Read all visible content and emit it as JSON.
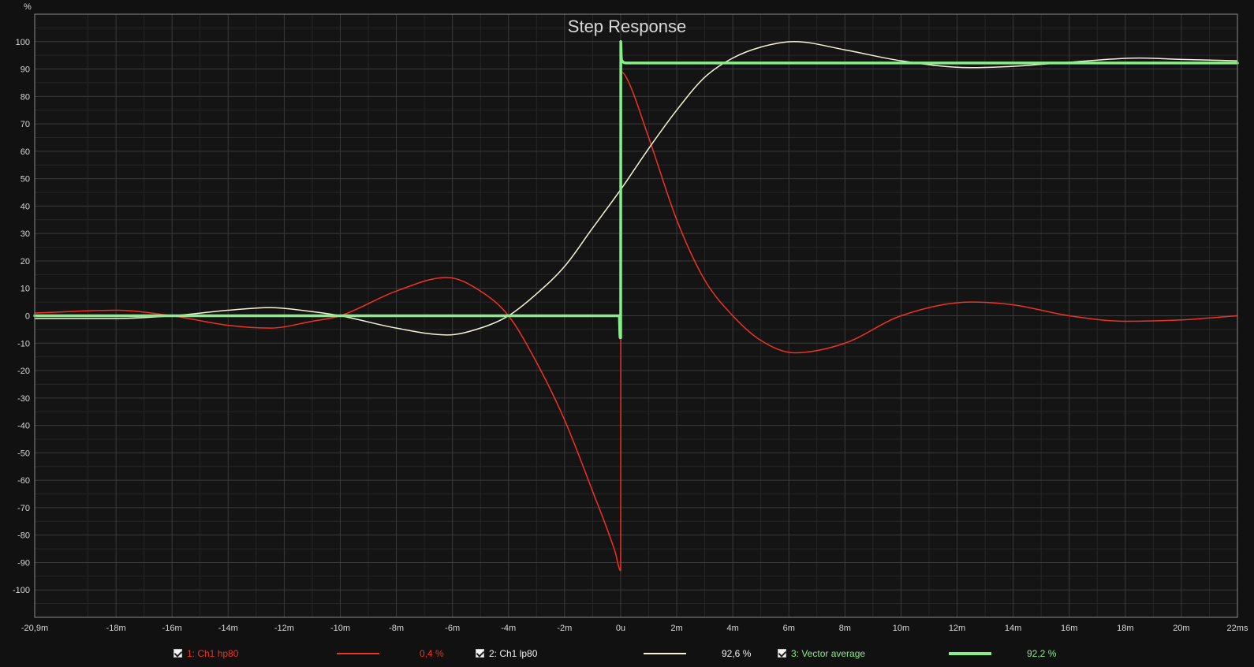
{
  "chart_data": {
    "type": "line",
    "title": "Step Response",
    "y_unit_label": "%",
    "xlim": [
      -20.9,
      22
    ],
    "ylim": [
      -110,
      110
    ],
    "x_ticks": [
      {
        "value": -20.9,
        "label": "-20,9m"
      },
      {
        "value": -18,
        "label": "-18m"
      },
      {
        "value": -16,
        "label": "-16m"
      },
      {
        "value": -14,
        "label": "-14m"
      },
      {
        "value": -12,
        "label": "-12m"
      },
      {
        "value": -10,
        "label": "-10m"
      },
      {
        "value": -8,
        "label": "-8m"
      },
      {
        "value": -6,
        "label": "-6m"
      },
      {
        "value": -4,
        "label": "-4m"
      },
      {
        "value": -2,
        "label": "-2m"
      },
      {
        "value": 0,
        "label": "0u"
      },
      {
        "value": 2,
        "label": "2m"
      },
      {
        "value": 4,
        "label": "4m"
      },
      {
        "value": 6,
        "label": "6m"
      },
      {
        "value": 8,
        "label": "8m"
      },
      {
        "value": 10,
        "label": "10m"
      },
      {
        "value": 12,
        "label": "12m"
      },
      {
        "value": 14,
        "label": "14m"
      },
      {
        "value": 16,
        "label": "16m"
      },
      {
        "value": 18,
        "label": "18m"
      },
      {
        "value": 20,
        "label": "20m"
      },
      {
        "value": 22,
        "label": "22ms"
      }
    ],
    "y_ticks": [
      100,
      90,
      80,
      70,
      60,
      50,
      40,
      30,
      20,
      10,
      0,
      -10,
      -20,
      -30,
      -40,
      -50,
      -60,
      -70,
      -80,
      -90,
      -100
    ],
    "grid": true,
    "legend_position": "bottom",
    "series": [
      {
        "name": "1: Ch1 hp80",
        "color": "#ee3322",
        "legend_value": "0,4 %",
        "x": [
          -20.9,
          -18,
          -16,
          -14,
          -12.5,
          -11,
          -10,
          -8,
          -6.2,
          -5,
          -4,
          -3,
          -2,
          -1,
          -0.2,
          0,
          0.01,
          0.2,
          1,
          2,
          3,
          4,
          5,
          6.2,
          8,
          10,
          12.5,
          14,
          16,
          18,
          20,
          22
        ],
        "y": [
          1,
          2,
          0,
          -3.5,
          -4.5,
          -2,
          0,
          9,
          14,
          9,
          0,
          -17,
          -38,
          -64,
          -86,
          -93,
          89,
          87,
          65,
          35,
          13,
          0,
          -9,
          -13.5,
          -10,
          0,
          5,
          4,
          0,
          -2,
          -1.5,
          0
        ]
      },
      {
        "name": "2: Ch1 lp80",
        "color": "#f6f3d8",
        "legend_value": "92,6 %",
        "x": [
          -20.9,
          -18,
          -16,
          -14,
          -12.5,
          -11,
          -10,
          -8,
          -6.2,
          -5,
          -4,
          -3,
          -2,
          -1,
          0,
          1,
          2,
          3,
          4,
          5,
          6.2,
          8,
          10,
          12.5,
          14,
          16,
          18.5,
          20,
          22
        ],
        "y": [
          -1,
          -1,
          0,
          2,
          3,
          1.5,
          0,
          -4.5,
          -7,
          -4.5,
          0,
          8,
          18,
          32,
          46,
          61,
          75,
          87,
          94,
          98,
          100,
          97,
          93,
          90.5,
          91,
          92.5,
          94,
          93.5,
          93
        ]
      },
      {
        "name": "3: Vector average",
        "color": "#88ee88",
        "legend_value": "92,2 %",
        "x": [
          -20.9,
          -0.05,
          -0.02,
          0,
          0.005,
          0.02,
          0.05,
          0.2,
          22
        ],
        "y": [
          0,
          0,
          -8,
          -8,
          100,
          95,
          93,
          92.2,
          92.2
        ]
      }
    ]
  },
  "legend": {
    "items": [
      {
        "label": "1: Ch1 hp80",
        "value": "0,4 %",
        "color": "#ee3322"
      },
      {
        "label": "2: Ch1 lp80",
        "value": "92,6 %",
        "color": "#f6f3d8"
      },
      {
        "label": "3: Vector average",
        "value": "92,2 %",
        "color": "#88ee88"
      }
    ]
  },
  "colors": {
    "background": "#111111",
    "plot_background": "#141414",
    "grid_major": "#3a3a3a",
    "grid_minor": "#262626",
    "axis": "#8a8a8a",
    "text": "#d8d8d8"
  }
}
